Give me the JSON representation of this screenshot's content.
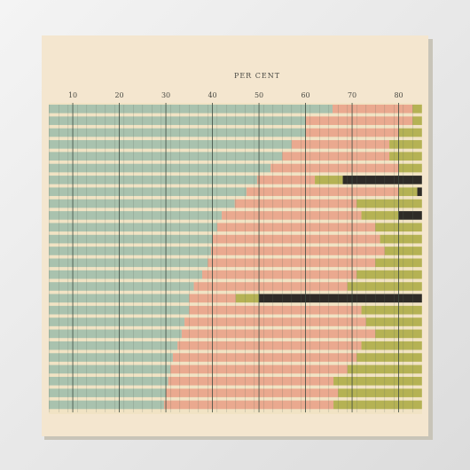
{
  "chart_data": {
    "type": "stacked-bar-horizontal",
    "xlabel": "PER CENT",
    "xlim": [
      5,
      85
    ],
    "xticks": [
      10,
      20,
      30,
      40,
      50,
      60,
      70,
      80
    ],
    "grid": true,
    "categories": [
      null,
      null,
      null,
      null,
      null,
      null,
      null,
      null,
      null,
      null,
      null,
      null,
      null,
      null,
      null,
      null,
      null,
      null,
      null,
      null,
      null,
      null,
      null,
      null,
      null,
      null
    ],
    "series": [
      {
        "color": "#a9c2ae",
        "values": [
          65.8,
          60,
          60,
          57,
          55,
          52.5,
          49.6,
          47.3,
          44.8,
          42,
          41,
          40,
          39.7,
          39,
          37.8,
          36,
          35,
          35,
          34,
          33.4,
          32.5,
          31.5,
          31,
          30.5,
          30,
          29.6
        ]
      },
      {
        "color": "#eaa98f",
        "values": [
          17.2,
          23,
          20,
          21,
          23,
          27.5,
          12.4,
          32.7,
          26.2,
          30,
          34,
          36,
          37.3,
          36,
          33.2,
          33,
          10,
          37,
          39,
          41.6,
          39.5,
          39.5,
          38,
          35.5,
          37,
          36.4
        ]
      },
      {
        "color": "#b5b254",
        "values": [
          2,
          2,
          5,
          7,
          7,
          5,
          6,
          4,
          14,
          8,
          10,
          9,
          8,
          10,
          14,
          16,
          5,
          13,
          12,
          10,
          13,
          14,
          16,
          19,
          18,
          19
        ]
      },
      {
        "color": "#2e2b27",
        "values": [
          0,
          0,
          0,
          0,
          0,
          0,
          17,
          1,
          0,
          5,
          0,
          0,
          0,
          0,
          0,
          0,
          35,
          0,
          0,
          0,
          0,
          0,
          0,
          0,
          0,
          0
        ]
      }
    ]
  }
}
